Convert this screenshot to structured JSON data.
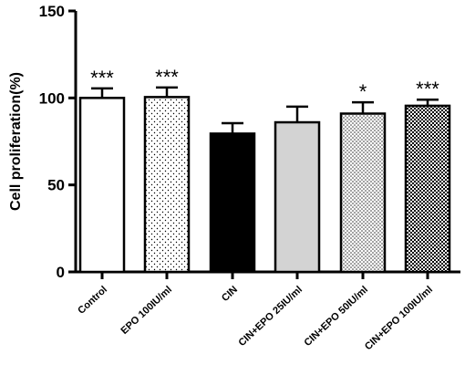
{
  "chart_data": {
    "type": "bar",
    "title": "",
    "xlabel": "",
    "ylabel": "Cell proliferation(%)",
    "ylim": [
      0,
      150
    ],
    "yticks": [
      0,
      50,
      100,
      150
    ],
    "grid": false,
    "categories": [
      "Control",
      "EPO 100IU/ml",
      "CIN",
      "CIN+EPO 25IU/ml",
      "CIN+EPO 50IU/ml",
      "CIN+EPO 100IU/ml"
    ],
    "values": [
      100,
      100.5,
      79.5,
      86,
      91,
      95.5
    ],
    "errors": [
      5.5,
      5.5,
      6,
      9,
      6.5,
      3.5
    ],
    "significance": [
      "***",
      "***",
      "",
      "",
      "*",
      "***"
    ],
    "fills": [
      "white",
      "sparse-dots",
      "black",
      "light-gray",
      "dense-dots",
      "checker"
    ]
  }
}
